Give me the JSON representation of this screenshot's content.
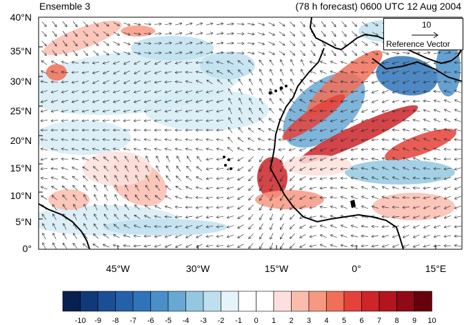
{
  "header": {
    "left_title": "Ensemble 3",
    "right_title": "(78 h forecast) 0600 UTC 12 Aug 2004"
  },
  "map": {
    "region": "West Africa / eastern Atlantic",
    "lat_labels": [
      "40°N",
      "35°N",
      "30°N",
      "25°N",
      "20°N",
      "15°N",
      "10°N",
      "5°N",
      "0°"
    ],
    "lon_labels": [
      "45°W",
      "30°W",
      "15°W",
      "0°",
      "15°E"
    ],
    "lat_range": [
      0,
      40
    ],
    "lon_range": [
      -60,
      20
    ],
    "coastline_color": "#000000",
    "land_fill_color": "#cccccc"
  },
  "reference_vector": {
    "magnitude": "10",
    "label": "Reference Vector"
  },
  "colorbar": {
    "labels": [
      "-10",
      "-9",
      "-8",
      "-7",
      "-6",
      "-5",
      "-4",
      "-3",
      "-2",
      "-1",
      "0",
      "1",
      "2",
      "3",
      "4",
      "5",
      "6",
      "7",
      "8",
      "9",
      "10"
    ],
    "colors": [
      "#08204f",
      "#0f3a7a",
      "#1a4f96",
      "#2461a8",
      "#2f74b8",
      "#4a90c8",
      "#68a8d4",
      "#94c8e0",
      "#bee0ee",
      "#e6f3fa",
      "#ffffff",
      "#ffffff",
      "#fde0dd",
      "#fbbcae",
      "#f79883",
      "#f16e58",
      "#e4423a",
      "#cd2529",
      "#b4141e",
      "#8f0a16",
      "#67000d"
    ]
  }
}
